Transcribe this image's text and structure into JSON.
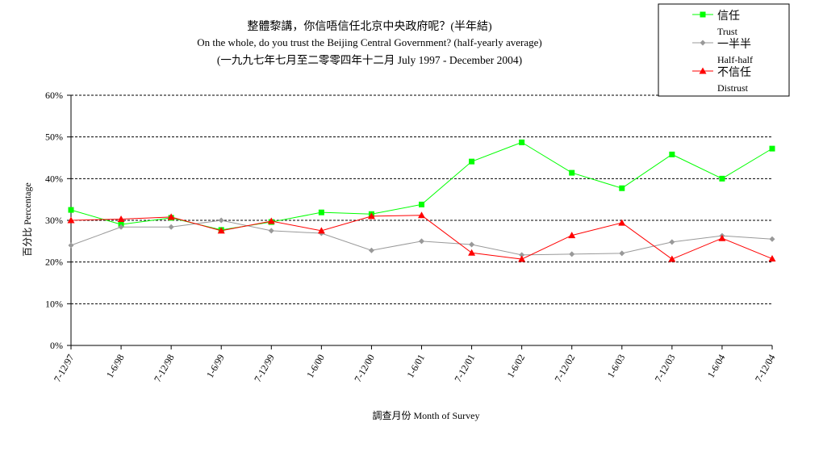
{
  "chart_data": {
    "type": "line",
    "title": "整體黎講，你信唔信任北京中央政府呢？(半年結)",
    "subtitle": "On the whole, do you trust the Beijing Central Government?  (half-yearly average)",
    "subtitle2": "(一九九七年七月至二零零四年十二月 July 1997 - December 2004)",
    "xlabel": "調查月份 Month of Survey",
    "ylabel": "百分比 Percentage",
    "ylim": [
      0,
      60
    ],
    "yticks": [
      "0%",
      "10%",
      "20%",
      "30%",
      "40%",
      "50%",
      "60%"
    ],
    "grid": true,
    "legend_position": "top-right",
    "categories": [
      "7-12/97",
      "1-6/98",
      "7-12/98",
      "1-6/99",
      "7-12/99",
      "1-6/00",
      "7-12/00",
      "1-6/01",
      "7-12/01",
      "1-6/02",
      "7-12/02",
      "1-6/03",
      "7-12/03",
      "1-6/04",
      "7-12/04"
    ],
    "series": [
      {
        "name": "信任",
        "name_en": "Trust",
        "color": "#00ff00",
        "marker": "square",
        "values": [
          32.5,
          29.0,
          30.6,
          27.7,
          29.6,
          31.9,
          31.5,
          33.8,
          44.1,
          48.7,
          41.4,
          37.7,
          45.8,
          40.0,
          47.2
        ]
      },
      {
        "name": "一半半",
        "name_en": "Half-half",
        "color": "#999999",
        "marker": "diamond",
        "values": [
          24.0,
          28.4,
          28.4,
          30.0,
          27.5,
          26.9,
          22.8,
          25.0,
          24.2,
          21.7,
          21.9,
          22.1,
          24.8,
          26.3,
          25.5
        ]
      },
      {
        "name": "不信任",
        "name_en": "Distrust",
        "color": "#ff0000",
        "marker": "triangle",
        "values": [
          30.0,
          30.3,
          30.8,
          27.5,
          29.8,
          27.5,
          31.0,
          31.2,
          22.2,
          20.7,
          26.4,
          29.4,
          20.7,
          25.7,
          20.8
        ]
      }
    ]
  }
}
